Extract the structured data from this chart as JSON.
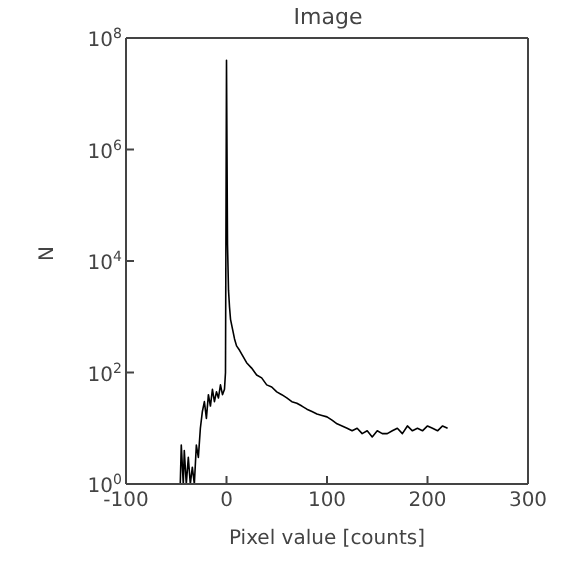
{
  "chart_data": {
    "type": "line",
    "title": "Image",
    "xlabel": "Pixel value [counts]",
    "ylabel": "N",
    "log": "y",
    "marker": "none",
    "line_style": "solid",
    "xlim": [
      -100,
      300
    ],
    "xticks": [
      -100,
      0,
      100,
      200,
      300
    ],
    "ylim": [
      1,
      100000000
    ],
    "yticks": [
      {
        "value": 1,
        "label": "10$^{0}$"
      },
      {
        "value": 100,
        "label": "10$^{2}$"
      },
      {
        "value": 10000,
        "label": "10$^{4}$"
      },
      {
        "value": 1000000,
        "label": "10$^{6}$"
      },
      {
        "value": 100000000,
        "label": "10$^{8}$"
      }
    ],
    "series": [
      {
        "color": "#000000",
        "x": [
          -46,
          -45,
          -43,
          -42,
          -40,
          -38,
          -36,
          -34,
          -32,
          -30,
          -28,
          -26,
          -24,
          -22,
          -20,
          -18,
          -16,
          -14,
          -12,
          -10,
          -8,
          -6,
          -4,
          -2,
          -1,
          0,
          1,
          2,
          3,
          4,
          6,
          8,
          10,
          13,
          16,
          20,
          25,
          30,
          35,
          40,
          45,
          50,
          55,
          60,
          65,
          70,
          75,
          80,
          85,
          90,
          95,
          100,
          105,
          110,
          115,
          120,
          125,
          130,
          135,
          140,
          145,
          150,
          155,
          160,
          165,
          170,
          175,
          180,
          185,
          190,
          195,
          200,
          205,
          210,
          215,
          220
        ],
        "values": [
          1,
          5,
          1,
          4,
          1,
          3,
          1,
          2,
          1,
          5,
          3,
          10,
          20,
          30,
          15,
          40,
          25,
          50,
          30,
          45,
          35,
          60,
          40,
          50,
          100,
          40000000,
          20000,
          3000,
          1500,
          900,
          600,
          400,
          300,
          250,
          200,
          150,
          120,
          90,
          80,
          60,
          55,
          45,
          40,
          35,
          30,
          28,
          25,
          22,
          20,
          18,
          17,
          16,
          14,
          12,
          11,
          10,
          9,
          10,
          8,
          9,
          7,
          9,
          8,
          8,
          9,
          10,
          8,
          11,
          9,
          10,
          9,
          11,
          10,
          9,
          11,
          10
        ]
      }
    ]
  }
}
